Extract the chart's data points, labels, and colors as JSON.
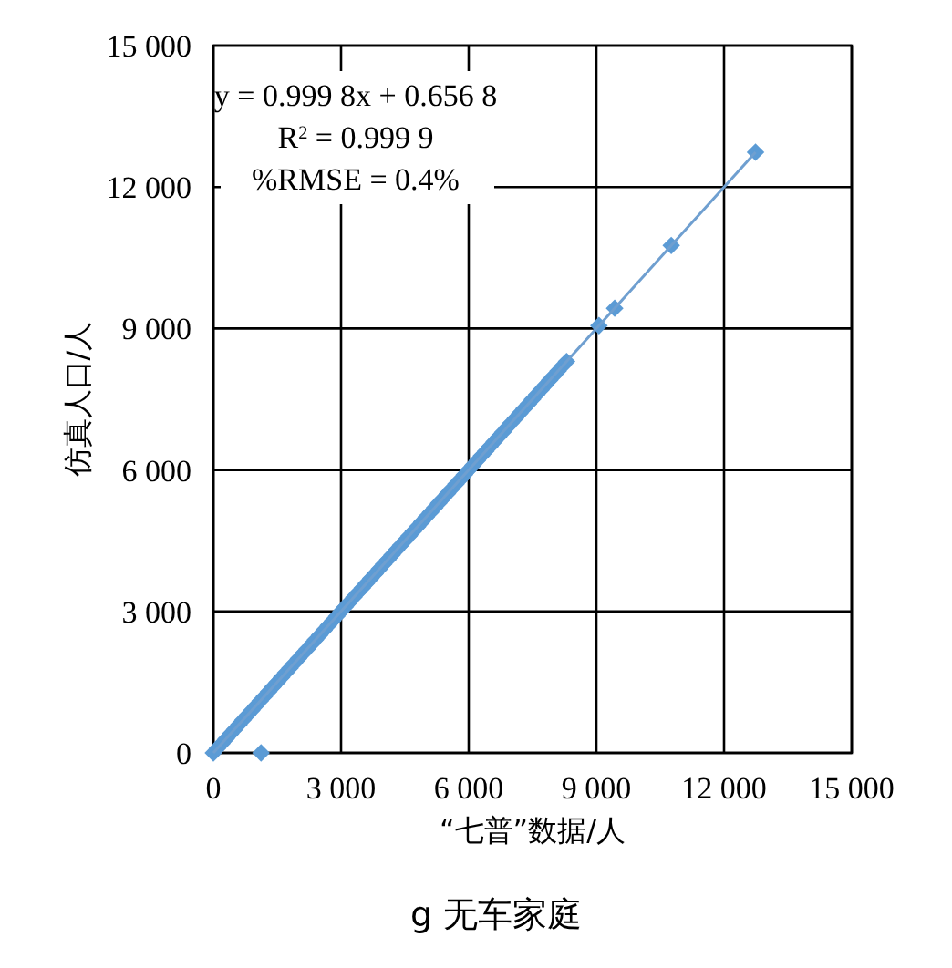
{
  "chart_data": {
    "type": "scatter",
    "title": "g 无车家庭",
    "xlabel": "“七普”数据/人",
    "ylabel": "仿真人口/人",
    "annotations": [
      "y = 0.999 8x + 0.656 8",
      "R$^{2}$ = 0.999 9",
      "%RMSE = 0.4%"
    ],
    "xlim": [
      0,
      15000
    ],
    "ylim": [
      0,
      15000
    ],
    "xticks": [
      0,
      {
        "value": 3000,
        "label": "3 000"
      },
      {
        "value": 6000,
        "label": "6 000"
      },
      {
        "value": 9000,
        "label": "9 000"
      },
      {
        "value": 12000,
        "label": "12 000"
      },
      {
        "value": 15000,
        "label": "15 000"
      }
    ],
    "yticks": [
      0,
      {
        "value": 3000,
        "label": "3 000"
      },
      {
        "value": 6000,
        "label": "6 000"
      },
      {
        "value": 9000,
        "label": "9 000"
      },
      {
        "value": 12000,
        "label": "12 000"
      },
      {
        "value": 15000,
        "label": "15 000"
      }
    ],
    "grid": true,
    "marker": "diamond",
    "series": [
      {
        "color": "#5b9bd5",
        "x": [
          0,
          100,
          200,
          300,
          400,
          500,
          600,
          700,
          800,
          900,
          1000,
          1100,
          1200,
          1300,
          1400,
          1500,
          1600,
          1700,
          1800,
          1900,
          2000,
          2100,
          2200,
          2300,
          2400,
          2500,
          2600,
          2700,
          2800,
          2900,
          3000,
          3100,
          3200,
          3300,
          3400,
          3500,
          3600,
          3700,
          3800,
          3900,
          4000,
          4100,
          4200,
          4300,
          4400,
          4500,
          4600,
          4700,
          4800,
          4900,
          5000,
          5100,
          5200,
          5300,
          5400,
          5500,
          5600,
          5700,
          5800,
          5900,
          6000,
          6100,
          6200,
          6300,
          6400,
          6500,
          6600,
          6700,
          6800,
          6900,
          7000,
          7100,
          7200,
          7300,
          7400,
          7500,
          7600,
          7700,
          7800,
          7900,
          8000,
          8100,
          8200,
          8300,
          9060,
          9430,
          10760,
          12740,
          1120
        ],
        "values": [
          0,
          100,
          200,
          300,
          400,
          500,
          600,
          700,
          800,
          900,
          1000,
          1100,
          1200,
          1300,
          1400,
          1500,
          1600,
          1700,
          1800,
          1900,
          2000,
          2100,
          2200,
          2300,
          2400,
          2500,
          2600,
          2700,
          2800,
          2900,
          3000,
          3100,
          3200,
          3300,
          3400,
          3500,
          3600,
          3700,
          3800,
          3900,
          4000,
          4100,
          4200,
          4300,
          4400,
          4500,
          4600,
          4700,
          4800,
          4900,
          5000,
          5100,
          5200,
          5300,
          5400,
          5500,
          5600,
          5700,
          5800,
          5900,
          6000,
          6100,
          6200,
          6300,
          6400,
          6500,
          6600,
          6700,
          6800,
          6900,
          7000,
          7100,
          7200,
          7300,
          7400,
          7500,
          7600,
          7700,
          7800,
          7900,
          8000,
          8100,
          8200,
          8300,
          9060,
          9430,
          10760,
          12740,
          0
        ]
      },
      {
        "type": "line",
        "color": "#6f9fd0",
        "marker": "none",
        "x": [
          0,
          12740
        ],
        "values": [
          0,
          12740
        ]
      }
    ]
  }
}
